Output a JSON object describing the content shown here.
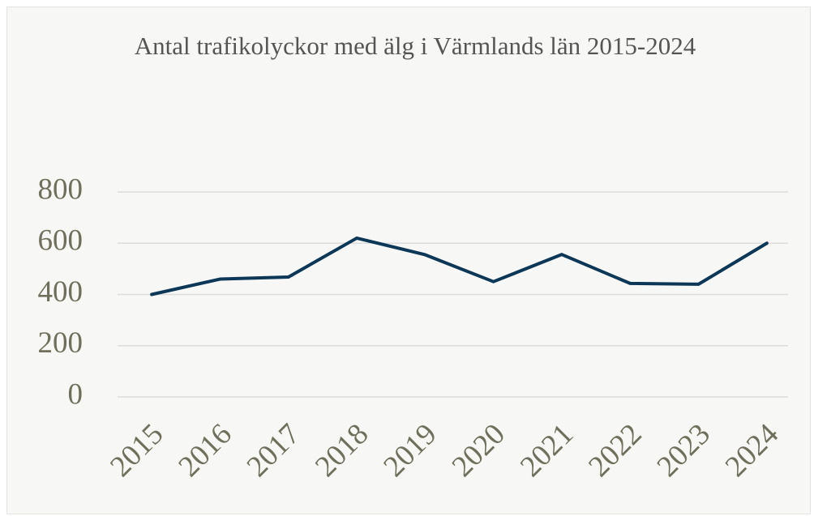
{
  "chart_data": {
    "type": "line",
    "title": "Antal trafikolyckor med älg i Värmlands län 2015-2024",
    "categories": [
      "2015",
      "2016",
      "2017",
      "2018",
      "2019",
      "2020",
      "2021",
      "2022",
      "2023",
      "2024"
    ],
    "series": [
      {
        "name": "Antal trafikolyckor",
        "color": "#0c3757",
        "values": [
          400,
          460,
          468,
          620,
          555,
          450,
          556,
          443,
          440,
          600
        ]
      }
    ],
    "ylim": [
      0,
      800
    ],
    "yticks": [
      0,
      200,
      400,
      600,
      800
    ],
    "grid": true
  }
}
